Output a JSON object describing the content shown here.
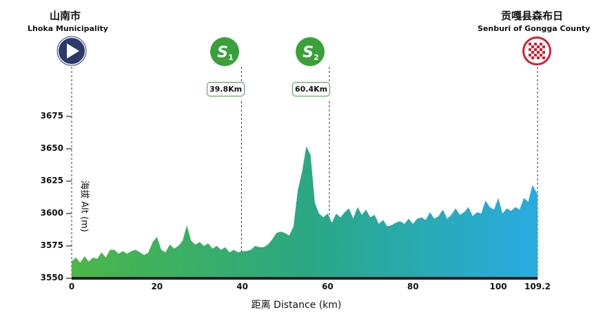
{
  "start": {
    "name_zh": "山南市",
    "name_en": "Lhoka Municipality",
    "icon": "start-play-icon",
    "color": "#2b3a6b"
  },
  "finish": {
    "name_zh": "贡嘎县森布日",
    "name_en": "Senburi of Gongga County",
    "icon": "finish-checkered-flag-icon",
    "color": "#d41f2e"
  },
  "sprints": [
    {
      "label": "S1",
      "km": 39.8,
      "km_label": "39.8Km",
      "icon": "sprint-icon",
      "color": "#3aa13a"
    },
    {
      "label": "S2",
      "km": 60.4,
      "km_label": "60.4Km",
      "icon": "sprint-icon",
      "color": "#3aa13a"
    }
  ],
  "chart_data": {
    "type": "area",
    "xlabel": "距离 Distance (km)",
    "ylabel": "海拔 Alt (m)",
    "xlim": [
      0,
      109.2
    ],
    "ylim": [
      3550,
      3675
    ],
    "x_ticks": [
      "0",
      "20",
      "40",
      "60",
      "80",
      "100",
      "109.2"
    ],
    "x_tick_values": [
      0,
      20,
      40,
      60,
      80,
      100,
      109.2
    ],
    "y_ticks": [
      "3675",
      "3650",
      "3625",
      "3600",
      "3575",
      "3550"
    ],
    "y_tick_values": [
      3675,
      3650,
      3625,
      3600,
      3575,
      3550
    ],
    "gradient": [
      "#4cb648",
      "#2aa882",
      "#29abe2"
    ],
    "x": [
      0,
      1,
      2,
      3,
      4,
      5,
      6,
      7,
      8,
      9,
      10,
      11,
      12,
      13,
      14,
      15,
      16,
      17,
      18,
      19,
      20,
      21,
      22,
      23,
      24,
      25,
      26,
      27,
      28,
      29,
      30,
      31,
      32,
      33,
      34,
      35,
      36,
      37,
      38,
      39,
      40,
      41,
      42,
      43,
      44,
      45,
      46,
      47,
      48,
      49,
      50,
      51,
      52,
      53,
      54,
      55,
      56,
      57,
      58,
      59,
      60,
      61,
      62,
      63,
      64,
      65,
      66,
      67,
      68,
      69,
      70,
      71,
      72,
      73,
      74,
      75,
      76,
      77,
      78,
      79,
      80,
      81,
      82,
      83,
      84,
      85,
      86,
      87,
      88,
      89,
      90,
      91,
      92,
      93,
      94,
      95,
      96,
      97,
      98,
      99,
      100,
      101,
      102,
      103,
      104,
      105,
      106,
      107,
      108,
      109.2
    ],
    "values": [
      3563,
      3566,
      3562,
      3567,
      3563,
      3566,
      3565,
      3570,
      3566,
      3572,
      3572,
      3569,
      3571,
      3569,
      3571,
      3572,
      3570,
      3568,
      3570,
      3578,
      3582,
      3572,
      3570,
      3576,
      3573,
      3575,
      3579,
      3591,
      3579,
      3576,
      3578,
      3575,
      3577,
      3573,
      3575,
      3572,
      3574,
      3570,
      3572,
      3570,
      3571,
      3571,
      3572,
      3575,
      3574,
      3574,
      3576,
      3580,
      3585,
      3586,
      3585,
      3583,
      3590,
      3618,
      3632,
      3652,
      3645,
      3608,
      3600,
      3597,
      3600,
      3593,
      3600,
      3597,
      3601,
      3604,
      3596,
      3605,
      3599,
      3603,
      3597,
      3599,
      3592,
      3595,
      3590,
      3591,
      3593,
      3594,
      3592,
      3596,
      3592,
      3596,
      3597,
      3595,
      3601,
      3596,
      3598,
      3603,
      3596,
      3599,
      3604,
      3599,
      3601,
      3605,
      3598,
      3601,
      3600,
      3610,
      3605,
      3603,
      3612,
      3600,
      3604,
      3602,
      3605,
      3603,
      3612,
      3609,
      3622,
      3615
    ]
  }
}
